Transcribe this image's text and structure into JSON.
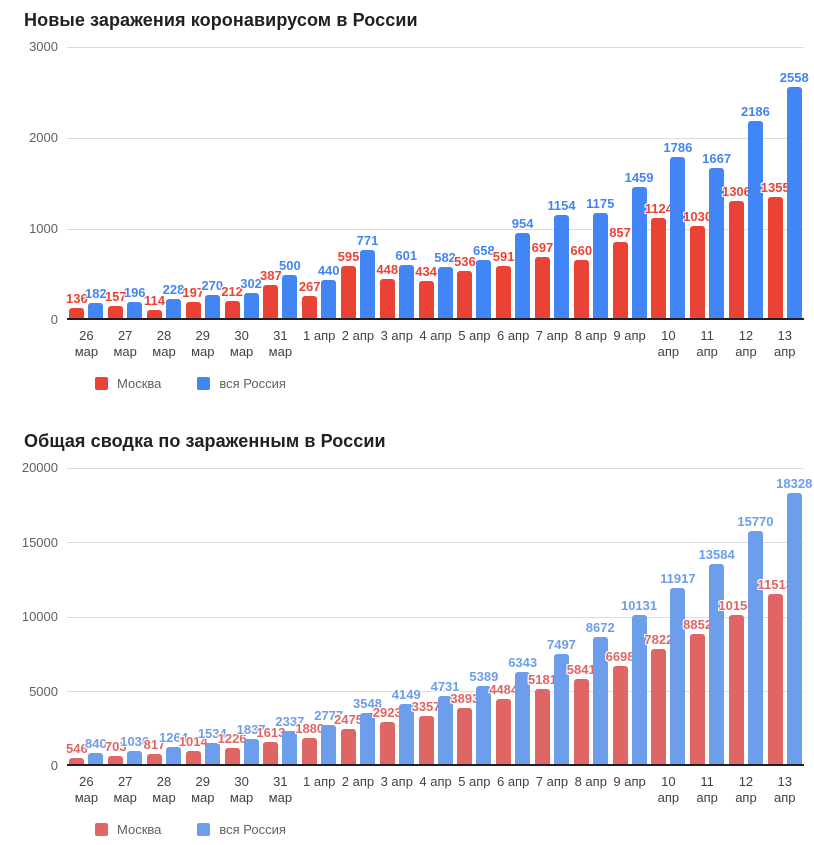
{
  "chart_data": [
    {
      "id": "new-infections",
      "type": "bar",
      "title": "Новые заражения коронавирусом в России",
      "categories": [
        [
          "26",
          "мар"
        ],
        [
          "27",
          "мар"
        ],
        [
          "28",
          "мар"
        ],
        [
          "29",
          "мар"
        ],
        [
          "30",
          "мар"
        ],
        [
          "31",
          "мар"
        ],
        [
          "1 апр"
        ],
        [
          "2 апр"
        ],
        [
          "3 апр"
        ],
        [
          "4 апр"
        ],
        [
          "5 апр"
        ],
        [
          "6 апр"
        ],
        [
          "7 апр"
        ],
        [
          "8 апр"
        ],
        [
          "9 апр"
        ],
        [
          "10",
          "апр"
        ],
        [
          "11",
          "апр"
        ],
        [
          "12",
          "апр"
        ],
        [
          "13",
          "апр"
        ]
      ],
      "series": [
        {
          "name": "Москва",
          "color": "#ea4335",
          "values": [
            136,
            157,
            114,
            197,
            212,
            387,
            267,
            595,
            448,
            434,
            536,
            591,
            697,
            660,
            857,
            1124,
            1030,
            1306,
            1355
          ]
        },
        {
          "name": "вся Россия",
          "color": "#4285f4",
          "values": [
            182,
            196,
            228,
            270,
            302,
            500,
            440,
            771,
            601,
            582,
            658,
            954,
            1154,
            1175,
            1459,
            1786,
            1667,
            2186,
            2558
          ]
        }
      ],
      "xlabel": "",
      "ylabel": "",
      "ylim": [
        0,
        3000
      ],
      "yticks": [
        0,
        1000,
        2000,
        3000
      ],
      "grid": true,
      "legend_position": "bottom-left"
    },
    {
      "id": "total-infections",
      "type": "bar",
      "title": "Общая сводка по зараженным в России",
      "categories": [
        [
          "26",
          "мар"
        ],
        [
          "27",
          "мар"
        ],
        [
          "28",
          "мар"
        ],
        [
          "29",
          "мар"
        ],
        [
          "30",
          "мар"
        ],
        [
          "31",
          "мар"
        ],
        [
          "1 апр"
        ],
        [
          "2 апр"
        ],
        [
          "3 апр"
        ],
        [
          "4 апр"
        ],
        [
          "5 апр"
        ],
        [
          "6 апр"
        ],
        [
          "7 апр"
        ],
        [
          "8 апр"
        ],
        [
          "9 апр"
        ],
        [
          "10",
          "апр"
        ],
        [
          "11",
          "апр"
        ],
        [
          "12",
          "апр"
        ],
        [
          "13",
          "апр"
        ]
      ],
      "series": [
        {
          "name": "Москва",
          "color": "#e06666",
          "values": [
            546,
            703,
            817,
            1014,
            1226,
            1613,
            1880,
            2475,
            2923,
            3357,
            3893,
            4484,
            5181,
            5841,
            6698,
            7822,
            8852,
            10158,
            11513
          ]
        },
        {
          "name": "вся Россия",
          "color": "#6d9eeb",
          "values": [
            840,
            1036,
            1264,
            1534,
            1837,
            2337,
            2777,
            3548,
            4149,
            4731,
            5389,
            6343,
            7497,
            8672,
            10131,
            11917,
            13584,
            15770,
            18328
          ]
        }
      ],
      "xlabel": "",
      "ylabel": "",
      "ylim": [
        0,
        20000
      ],
      "yticks": [
        0,
        5000,
        10000,
        15000,
        20000
      ],
      "grid": true,
      "legend_position": "bottom-left"
    }
  ]
}
